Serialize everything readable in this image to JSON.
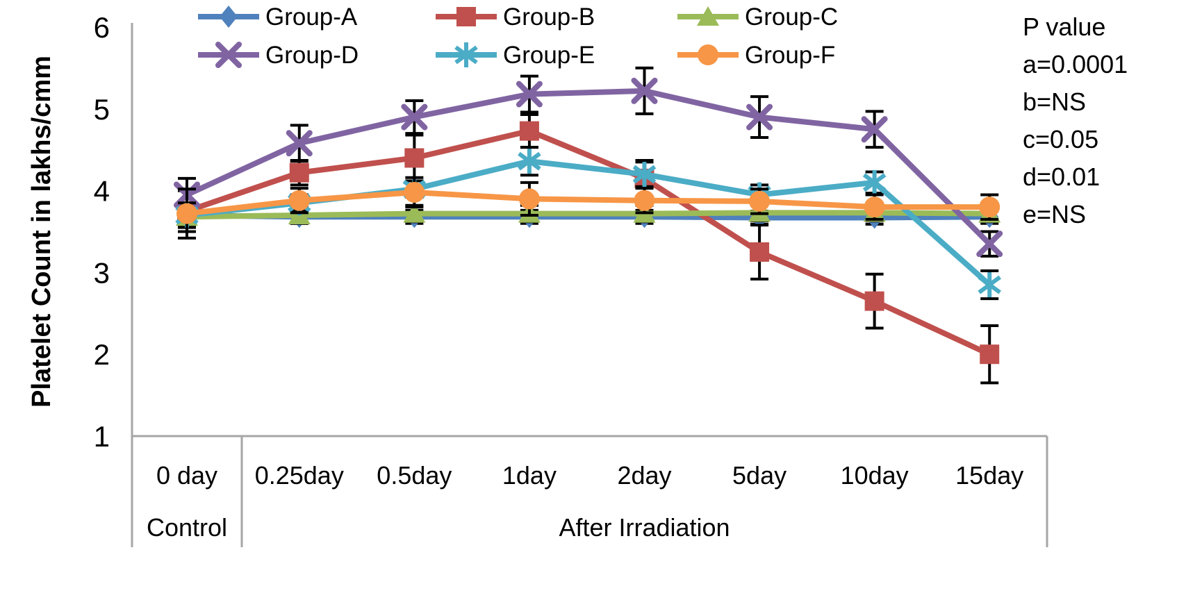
{
  "chart_data": {
    "type": "line",
    "title": "",
    "xlabel": "",
    "ylabel": "Platelet Count in lakhs/cmm",
    "ylim": [
      1,
      6
    ],
    "yticks": [
      1,
      2,
      3,
      4,
      5,
      6
    ],
    "grid": false,
    "legend_position": "top",
    "axis_color": "#a6a6a6",
    "error_bar_color": "#000000",
    "categories": [
      "0 day",
      "0.25day",
      "0.5day",
      "1day",
      "2day",
      "5day",
      "10day",
      "15day"
    ],
    "x_groups": [
      {
        "label": "Control",
        "span": [
          0,
          0
        ]
      },
      {
        "label": "After Irradiation",
        "span": [
          1,
          7
        ]
      }
    ],
    "series": [
      {
        "name": "Group-A",
        "color": "#4F81BD",
        "marker": "diamond",
        "values": [
          3.7,
          3.68,
          3.68,
          3.68,
          3.68,
          3.67,
          3.67,
          3.68
        ],
        "errors": [
          0.1,
          0.08,
          0.08,
          0.08,
          0.08,
          0.08,
          0.08,
          0.08
        ]
      },
      {
        "name": "Group-B",
        "color": "#C0504D",
        "marker": "square",
        "values": [
          3.75,
          4.22,
          4.4,
          4.73,
          4.15,
          3.25,
          2.65,
          2.0
        ],
        "errors": [
          0.25,
          0.15,
          0.28,
          0.2,
          0.22,
          0.33,
          0.33,
          0.35
        ]
      },
      {
        "name": "Group-C",
        "color": "#9BBB59",
        "marker": "triangle",
        "values": [
          3.68,
          3.7,
          3.72,
          3.72,
          3.72,
          3.73,
          3.73,
          3.72
        ],
        "errors": [
          0.1,
          0.1,
          0.1,
          0.1,
          0.1,
          0.1,
          0.1,
          0.1
        ]
      },
      {
        "name": "Group-D",
        "color": "#8064A2",
        "marker": "x",
        "values": [
          3.95,
          4.58,
          4.9,
          5.18,
          5.22,
          4.9,
          4.75,
          3.35
        ],
        "errors": [
          0.2,
          0.22,
          0.2,
          0.22,
          0.28,
          0.25,
          0.22,
          0.15
        ]
      },
      {
        "name": "Group-E",
        "color": "#4BACC6",
        "marker": "asterisk",
        "values": [
          3.7,
          3.85,
          4.02,
          4.36,
          4.2,
          3.95,
          4.1,
          2.85
        ],
        "errors": [
          0.15,
          0.1,
          0.1,
          0.17,
          0.15,
          0.12,
          0.13,
          0.17
        ]
      },
      {
        "name": "Group-F",
        "color": "#F79646",
        "marker": "circle",
        "values": [
          3.72,
          3.88,
          3.98,
          3.9,
          3.88,
          3.87,
          3.8,
          3.8
        ],
        "errors": [
          0.3,
          0.15,
          0.18,
          0.2,
          0.15,
          0.15,
          0.15,
          0.15
        ]
      }
    ],
    "p_values": {
      "title": "P value",
      "lines": [
        "a=0.0001",
        "b=NS",
        "c=0.05",
        "d=0.01",
        "e=NS"
      ]
    }
  }
}
